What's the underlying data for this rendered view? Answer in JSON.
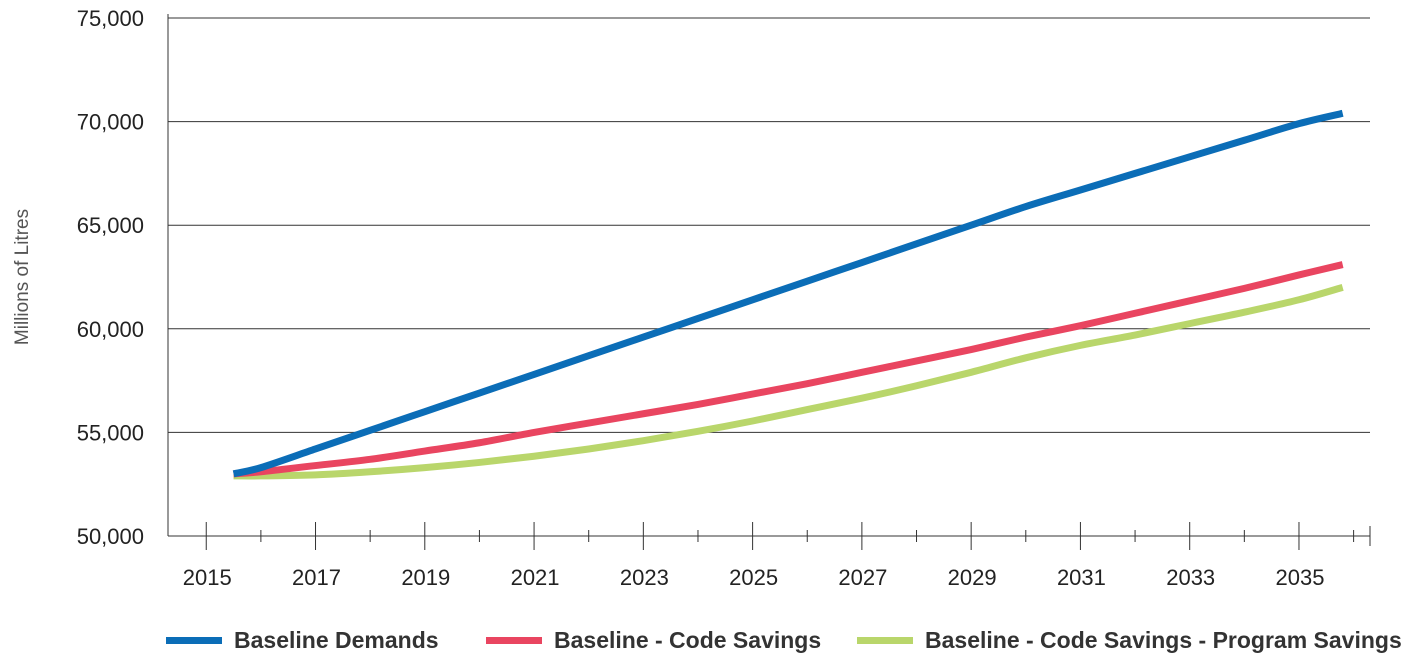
{
  "chart_data": {
    "type": "line",
    "title": "",
    "xlabel": "",
    "ylabel": "Millions of Litres",
    "xlim": [
      2014.3,
      2036.3
    ],
    "ylim": [
      50000,
      75000
    ],
    "x_ticks": [
      2015,
      2017,
      2019,
      2021,
      2023,
      2025,
      2027,
      2029,
      2031,
      2033,
      2035
    ],
    "x_tick_labels": [
      "2015",
      "2017",
      "2019",
      "2021",
      "2023",
      "2025",
      "2027",
      "2029",
      "2031",
      "2033",
      "2035"
    ],
    "y_ticks": [
      50000,
      55000,
      60000,
      65000,
      70000,
      75000
    ],
    "y_tick_labels": [
      "50,000",
      "55,000",
      "60,000",
      "65,000",
      "70,000",
      "75,000"
    ],
    "grid": "horizontal",
    "legend_position": "bottom",
    "x": [
      2015.5,
      2016,
      2017,
      2018,
      2019,
      2020,
      2021,
      2022,
      2023,
      2024,
      2025,
      2026,
      2027,
      2028,
      2029,
      2030,
      2031,
      2032,
      2033,
      2034,
      2035,
      2035.8
    ],
    "series": [
      {
        "name": "Baseline Demands",
        "color": "#0b6db7",
        "values": [
          53000,
          53300,
          54200,
          55100,
          56000,
          56900,
          57800,
          58700,
          59600,
          60500,
          61400,
          62300,
          63200,
          64100,
          65000,
          65900,
          66700,
          67500,
          68300,
          69100,
          69900,
          70400
        ]
      },
      {
        "name": "Baseline - Code Savings",
        "color": "#e94560",
        "values": [
          53000,
          53100,
          53400,
          53700,
          54100,
          54500,
          55000,
          55450,
          55900,
          56350,
          56850,
          57350,
          57900,
          58450,
          59000,
          59600,
          60150,
          60750,
          61350,
          61950,
          62600,
          63100
        ]
      },
      {
        "name": "Baseline - Code Savings - Program Savings",
        "color": "#b9d66b",
        "values": [
          52900,
          52900,
          52950,
          53100,
          53300,
          53550,
          53850,
          54200,
          54600,
          55050,
          55550,
          56100,
          56650,
          57250,
          57900,
          58600,
          59200,
          59700,
          60250,
          60800,
          61400,
          62000
        ]
      }
    ]
  }
}
